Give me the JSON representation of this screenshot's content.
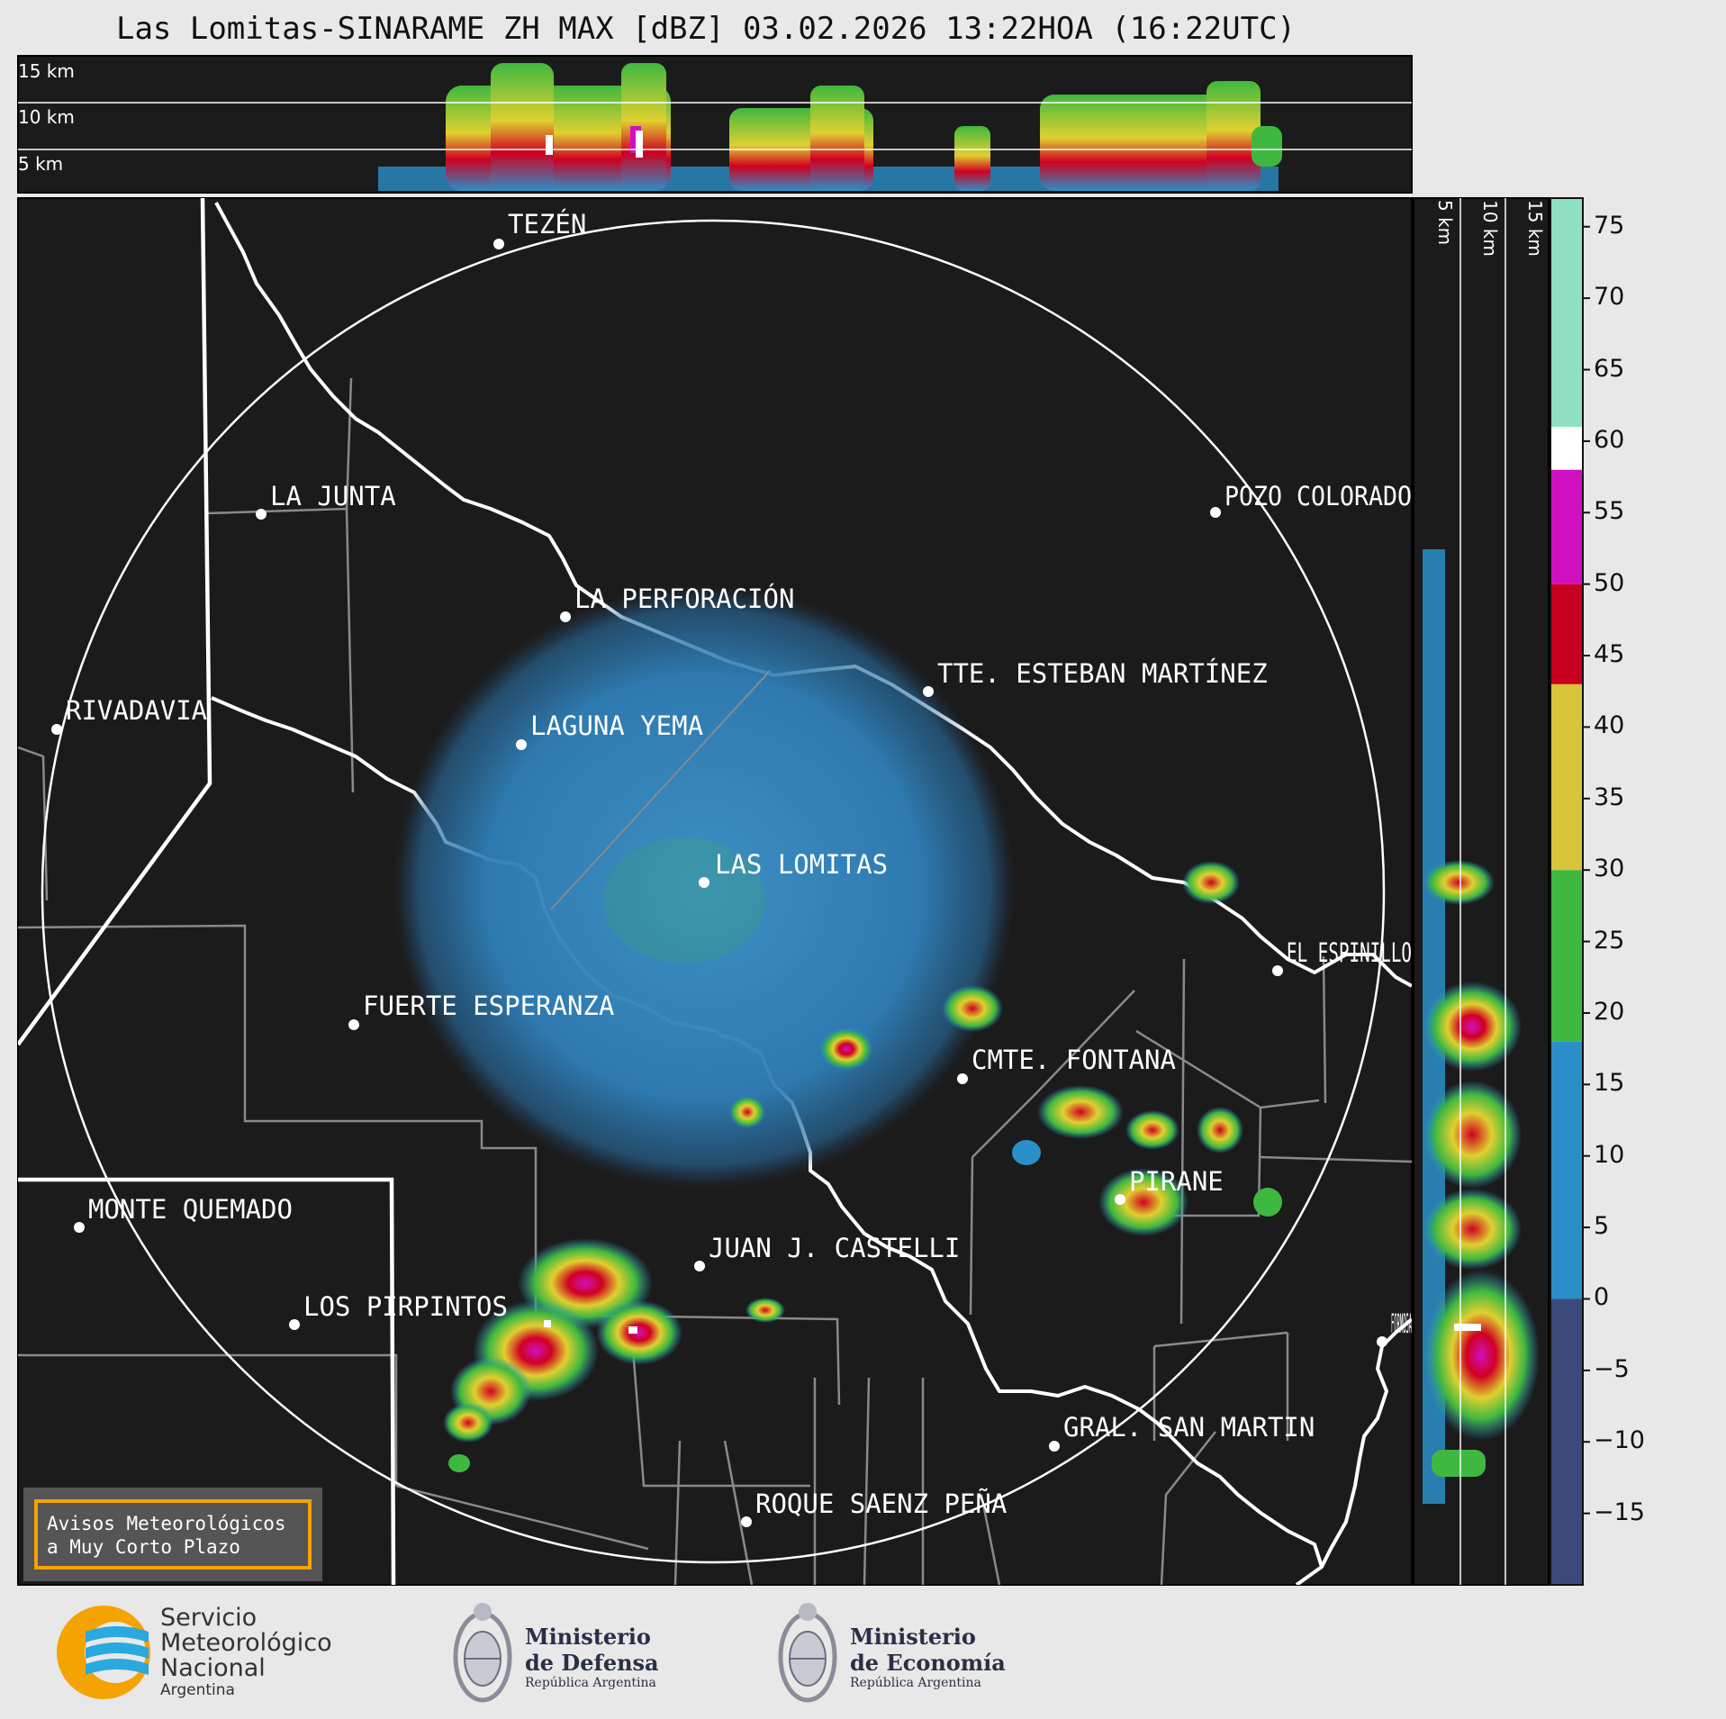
{
  "header": {
    "title": "Las Lomitas-SINARAME ZH MAX [dBZ] 03.02.2026 13:22HOA (16:22UTC)"
  },
  "top_panel": {
    "altitude_labels": [
      "15 km",
      "10 km",
      "5 km"
    ]
  },
  "side_panel": {
    "altitude_labels": [
      "5 km",
      "10 km",
      "15 km"
    ]
  },
  "colorbar": {
    "unit": "dBZ",
    "ticks": [
      75,
      70,
      65,
      60,
      55,
      50,
      45,
      40,
      35,
      30,
      25,
      20,
      15,
      10,
      5,
      0,
      -5,
      -10,
      -15
    ],
    "tick_labels": [
      "75",
      "70",
      "65",
      "60",
      "55",
      "50",
      "45",
      "40",
      "35",
      "30",
      "25",
      "20",
      "15",
      "10",
      "5",
      "0",
      "−5",
      "−10",
      "−15"
    ],
    "range": [
      -20,
      77
    ],
    "bands": [
      {
        "from": -20,
        "to": 0,
        "color": "#3b4a7a"
      },
      {
        "from": 0,
        "to": 18,
        "color": "#2a8fc8"
      },
      {
        "from": 18,
        "to": 30,
        "color": "#3fb83f"
      },
      {
        "from": 30,
        "to": 43,
        "color": "#d8c43a"
      },
      {
        "from": 43,
        "to": 50,
        "color": "#c80020"
      },
      {
        "from": 50,
        "to": 58,
        "color": "#d010c0"
      },
      {
        "from": 58,
        "to": 61,
        "color": "#ffffff"
      },
      {
        "from": 61,
        "to": 77,
        "color": "#8fe0c0"
      }
    ]
  },
  "places": [
    {
      "name": "TEZÉN"
    },
    {
      "name": "LA JUNTA"
    },
    {
      "name": "POZO COLORADO"
    },
    {
      "name": "LA PERFORACIÓN"
    },
    {
      "name": "TTE. ESTEBAN MARTÍNEZ"
    },
    {
      "name": "RIVADAVIA"
    },
    {
      "name": "LAGUNA YEMA"
    },
    {
      "name": "LAS LOMITAS"
    },
    {
      "name": "EL ESPINILLO"
    },
    {
      "name": "FUERTE ESPERANZA"
    },
    {
      "name": "CMTE. FONTANA"
    },
    {
      "name": "PIRANE"
    },
    {
      "name": "MONTE QUEMADO"
    },
    {
      "name": "JUAN J. CASTELLI"
    },
    {
      "name": "LOS PIRPINTOS"
    },
    {
      "name": "GRAL. SAN MARTIN"
    },
    {
      "name": "ROQUE SAENZ PEÑA"
    },
    {
      "name": "FORMOSA"
    }
  ],
  "notice": {
    "line1": "Avisos Meteorológicos",
    "line2": "a Muy Corto Plazo"
  },
  "logos": {
    "smn": {
      "line1": "Servicio",
      "line2": "Meteorológico",
      "line3": "Nacional",
      "line4": "Argentina"
    },
    "defensa": {
      "line1": "Ministerio",
      "line2": "de Defensa",
      "line3": "República Argentina"
    },
    "economia": {
      "line1": "Ministerio",
      "line2": "de Economía",
      "line3": "República Argentina"
    }
  },
  "colors": {
    "map_bg": "#1b1b1b",
    "smn_blue": "#2aa8e0",
    "smn_orange": "#f5a300"
  }
}
